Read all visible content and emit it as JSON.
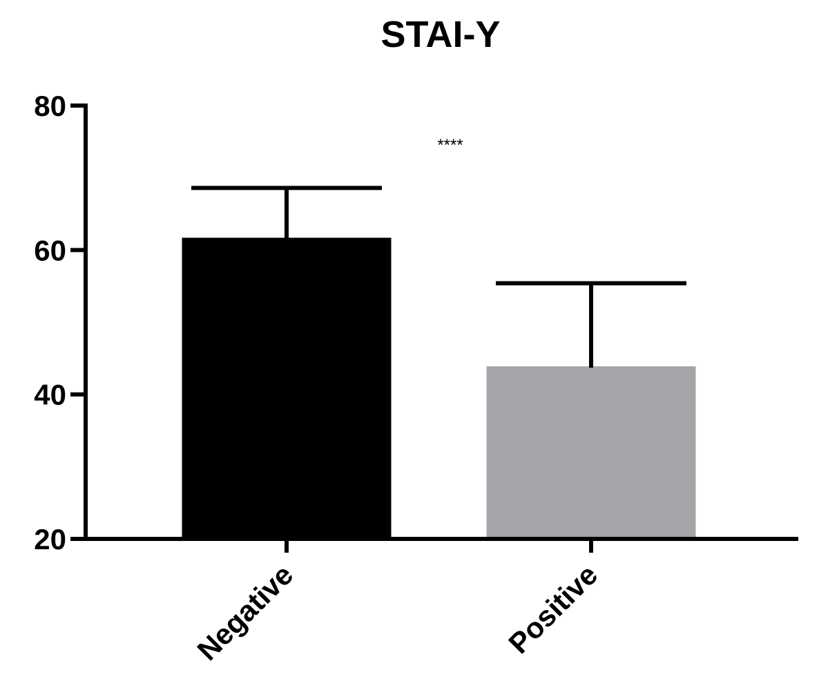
{
  "chart_data": {
    "type": "bar",
    "title": "STAI-Y",
    "xlabel": "",
    "ylabel": "",
    "ylim": [
      20,
      80
    ],
    "yticks": [
      20,
      40,
      60,
      80
    ],
    "categories": [
      "Negative",
      "Positive"
    ],
    "values": [
      61.7,
      43.9
    ],
    "errors": [
      6.9,
      11.5
    ],
    "colors": [
      "#000000",
      "#a4a5a8"
    ],
    "annotation": "****",
    "grid": false,
    "legend": "none"
  }
}
